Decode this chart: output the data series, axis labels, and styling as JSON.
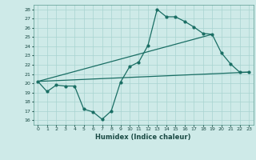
{
  "xlabel": "Humidex (Indice chaleur)",
  "bg_color": "#ceeae8",
  "grid_color": "#a8d4d0",
  "line_color": "#1a6e64",
  "xlim": [
    -0.5,
    23.5
  ],
  "ylim": [
    15.5,
    28.5
  ],
  "yticks": [
    16,
    17,
    18,
    19,
    20,
    21,
    22,
    23,
    24,
    25,
    26,
    27,
    28
  ],
  "xticks": [
    0,
    1,
    2,
    3,
    4,
    5,
    6,
    7,
    8,
    9,
    10,
    11,
    12,
    13,
    14,
    15,
    16,
    17,
    18,
    19,
    20,
    21,
    22,
    23
  ],
  "line1_x": [
    0,
    1,
    2,
    3,
    4,
    5,
    6,
    7,
    8,
    9,
    10,
    11,
    12,
    13,
    14,
    15,
    16,
    17,
    18,
    19,
    20,
    21,
    22,
    23
  ],
  "line1_y": [
    20.2,
    19.1,
    19.8,
    19.7,
    19.7,
    17.2,
    16.9,
    16.1,
    17.0,
    20.1,
    21.8,
    22.3,
    24.1,
    28.0,
    27.2,
    27.2,
    26.7,
    26.1,
    25.4,
    25.3,
    23.3,
    22.1,
    21.2,
    21.2
  ],
  "line2_x": [
    0,
    19
  ],
  "line2_y": [
    20.2,
    25.3
  ],
  "line3_x": [
    0,
    23
  ],
  "line3_y": [
    20.2,
    21.2
  ]
}
